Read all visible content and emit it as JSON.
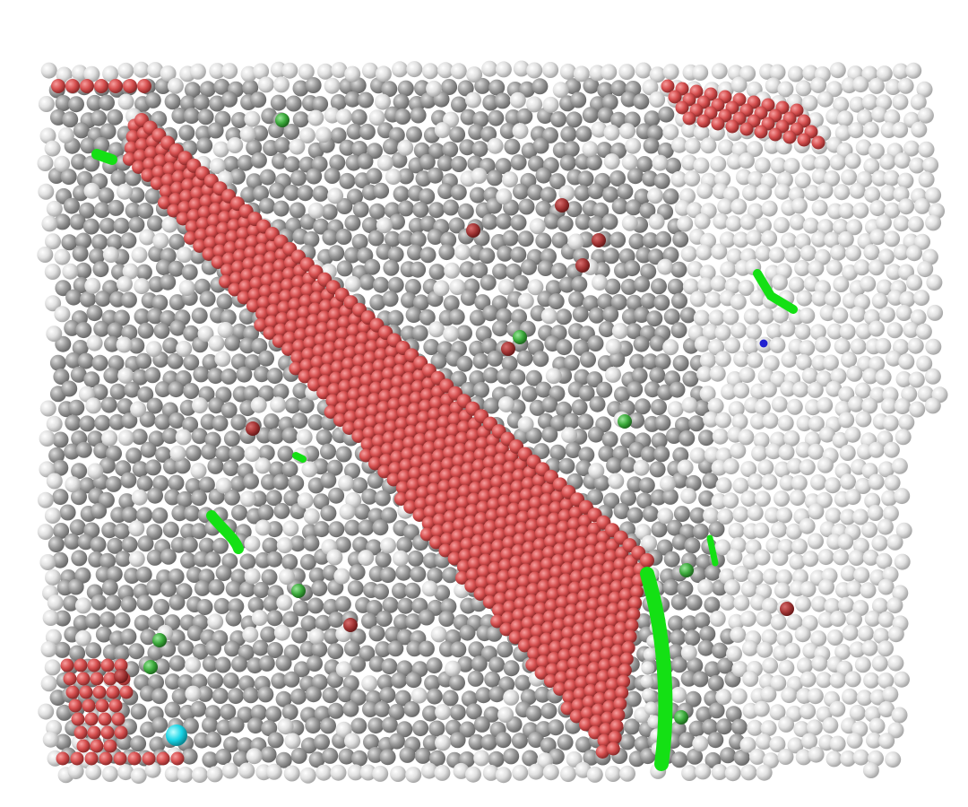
{
  "image": {
    "subject": "atomistic-simulation-render",
    "background_color": "#ffffff",
    "colors": {
      "bulk_atom": "#8f8f8f",
      "surface_atom": "#e2e2e2",
      "stacking_fault_atom": "#d94a4a",
      "dislocation_core": "#14e014",
      "defect_site_cyan": "#10d8e8",
      "defect_site_blue": "#2020d0",
      "interstitial_dark_red": "#a83838",
      "interstitial_green": "#36a836"
    }
  }
}
